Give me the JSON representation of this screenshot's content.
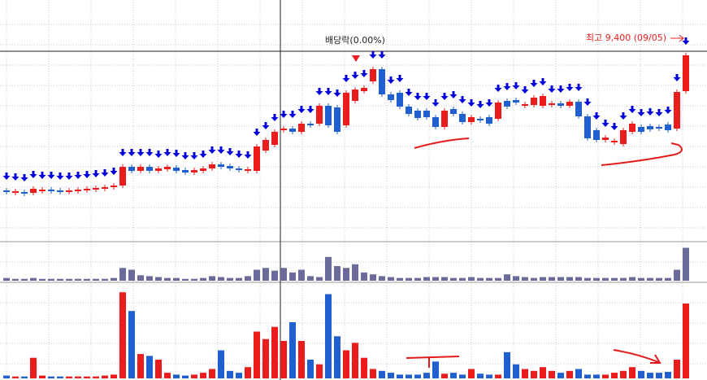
{
  "chart_data": {
    "type": "candlestick",
    "annotations": {
      "dividend": "배당락(0.00%)",
      "high": "최고 9,400 (09/05)"
    },
    "open": [
      7740,
      7710,
      7720,
      7710,
      7740,
      7750,
      7740,
      7730,
      7740,
      7750,
      7760,
      7770,
      7780,
      7800,
      8030,
      7980,
      8030,
      7980,
      8000,
      8020,
      7990,
      7960,
      7980,
      8010,
      8060,
      8040,
      8010,
      7990,
      7980,
      8230,
      8300,
      8480,
      8500,
      8460,
      8560,
      8560,
      8780,
      8760,
      8540,
      8840,
      8960,
      9080,
      9230,
      8920,
      8940,
      8770,
      8720,
      8720,
      8640,
      8520,
      8740,
      8680,
      8580,
      8620,
      8640,
      8620,
      8840,
      8850,
      8780,
      8790,
      8780,
      8800,
      8810,
      8780,
      8830,
      8650,
      8480,
      8360,
      8330,
      8310,
      8460,
      8520,
      8530,
      8520,
      8550,
      8500,
      8960
    ],
    "close": [
      7720,
      7730,
      7710,
      7760,
      7750,
      7740,
      7730,
      7740,
      7750,
      7760,
      7770,
      7780,
      7800,
      8030,
      7980,
      8030,
      7980,
      8010,
      8030,
      7980,
      7960,
      7990,
      8010,
      8060,
      8030,
      8010,
      7990,
      8000,
      8280,
      8360,
      8460,
      8500,
      8460,
      8560,
      8560,
      8780,
      8540,
      8460,
      8940,
      8980,
      9000,
      9230,
      8920,
      8850,
      8770,
      8680,
      8630,
      8640,
      8520,
      8720,
      8680,
      8580,
      8640,
      8600,
      8560,
      8820,
      8770,
      8820,
      8800,
      8880,
      8900,
      8810,
      8780,
      8830,
      8650,
      8380,
      8360,
      8390,
      8350,
      8480,
      8560,
      8460,
      8490,
      8520,
      8480,
      8950,
      9400
    ],
    "volume": [
      3,
      2,
      2,
      3,
      2,
      2,
      2,
      2,
      2,
      2,
      2,
      2,
      3,
      14,
      12,
      6,
      5,
      4,
      3,
      3,
      2,
      2,
      3,
      5,
      4,
      3,
      3,
      5,
      12,
      14,
      11,
      14,
      9,
      12,
      5,
      4,
      26,
      16,
      14,
      18,
      9,
      7,
      5,
      4,
      3,
      3,
      3,
      4,
      4,
      4,
      3,
      3,
      4,
      3,
      3,
      3,
      7,
      5,
      4,
      3,
      4,
      4,
      4,
      4,
      4,
      3,
      3,
      3,
      3,
      3,
      4,
      3,
      3,
      3,
      3,
      12,
      36
    ],
    "trade_value": [
      3,
      2,
      2,
      22,
      3,
      2,
      2,
      2,
      2,
      2,
      2,
      3,
      4,
      92,
      72,
      26,
      24,
      20,
      6,
      4,
      3,
      4,
      6,
      10,
      30,
      8,
      6,
      12,
      50,
      42,
      55,
      40,
      60,
      40,
      20,
      15,
      90,
      45,
      30,
      38,
      22,
      10,
      8,
      6,
      4,
      4,
      4,
      6,
      18,
      5,
      6,
      4,
      10,
      5,
      4,
      4,
      28,
      15,
      10,
      8,
      12,
      8,
      6,
      8,
      10,
      4,
      4,
      4,
      6,
      8,
      12,
      8,
      6,
      6,
      7,
      20,
      80
    ],
    "ylim": [
      7110,
      10080
    ],
    "volume_ylim": [
      0,
      40
    ],
    "trade_value_ylim": [
      0,
      100
    ],
    "up_color": "#ec1c1c",
    "down_color": "#1f5fcf",
    "volume_color": "#6b6b9b",
    "signal_color": "#0000dd"
  }
}
